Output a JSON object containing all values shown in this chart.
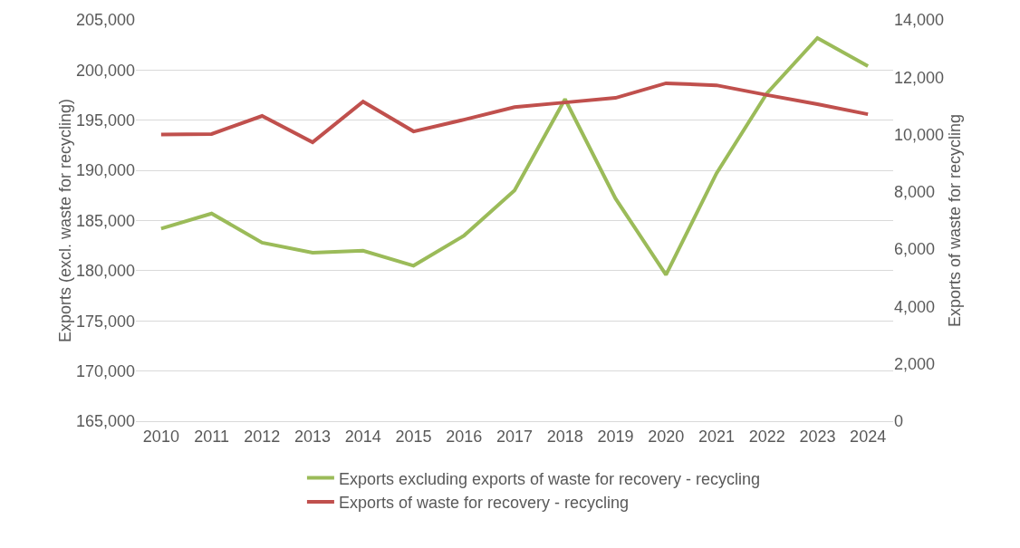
{
  "chart_data": {
    "type": "line",
    "ylabel": "Exports (excl. waste for recycling)",
    "y2label": "Exports of waste for recycling",
    "categories": [
      "2010",
      "2011",
      "2012",
      "2013",
      "2014",
      "2015",
      "2016",
      "2017",
      "2018",
      "2019",
      "2020",
      "2021",
      "2022",
      "2023",
      "2024"
    ],
    "series": [
      {
        "name": "Exports excluding exports of waste for recovery - recycling",
        "color": "#9bbb59",
        "values": [
          184200,
          185700,
          182800,
          181800,
          182000,
          180500,
          183500,
          188000,
          197100,
          187200,
          179600,
          189700,
          197700,
          203200,
          200400
        ]
      },
      {
        "name": "Exports of waste for recovery - recycling",
        "color": "#c0504d",
        "axis": "y2",
        "values": [
          10000,
          10020,
          10650,
          9730,
          11150,
          10110,
          10520,
          10960,
          11120,
          11280,
          11790,
          11720,
          11380,
          11060,
          10710
        ]
      }
    ],
    "ylim": [
      165000,
      205000
    ],
    "yticks": [
      {
        "value": 165000,
        "label": "165,000"
      },
      {
        "value": 170000,
        "label": "170,000"
      },
      {
        "value": 175000,
        "label": "175,000"
      },
      {
        "value": 180000,
        "label": "180,000"
      },
      {
        "value": 185000,
        "label": "185,000"
      },
      {
        "value": 190000,
        "label": "190,000"
      },
      {
        "value": 195000,
        "label": "195,000"
      },
      {
        "value": 200000,
        "label": "200,000"
      },
      {
        "value": 205000,
        "label": "205,000"
      }
    ],
    "y2lim": [
      0,
      14000
    ],
    "y2ticks": [
      0,
      {
        "value": 2000,
        "label": "2,000"
      },
      {
        "value": 4000,
        "label": "4,000"
      },
      {
        "value": 6000,
        "label": "6,000"
      },
      {
        "value": 8000,
        "label": "8,000"
      },
      {
        "value": 10000,
        "label": "10,000"
      },
      {
        "value": 12000,
        "label": "12,000"
      },
      {
        "value": 14000,
        "label": "14,000"
      }
    ],
    "grid": "y",
    "legend": "bottom",
    "marker": "none",
    "line_style": "solid"
  }
}
